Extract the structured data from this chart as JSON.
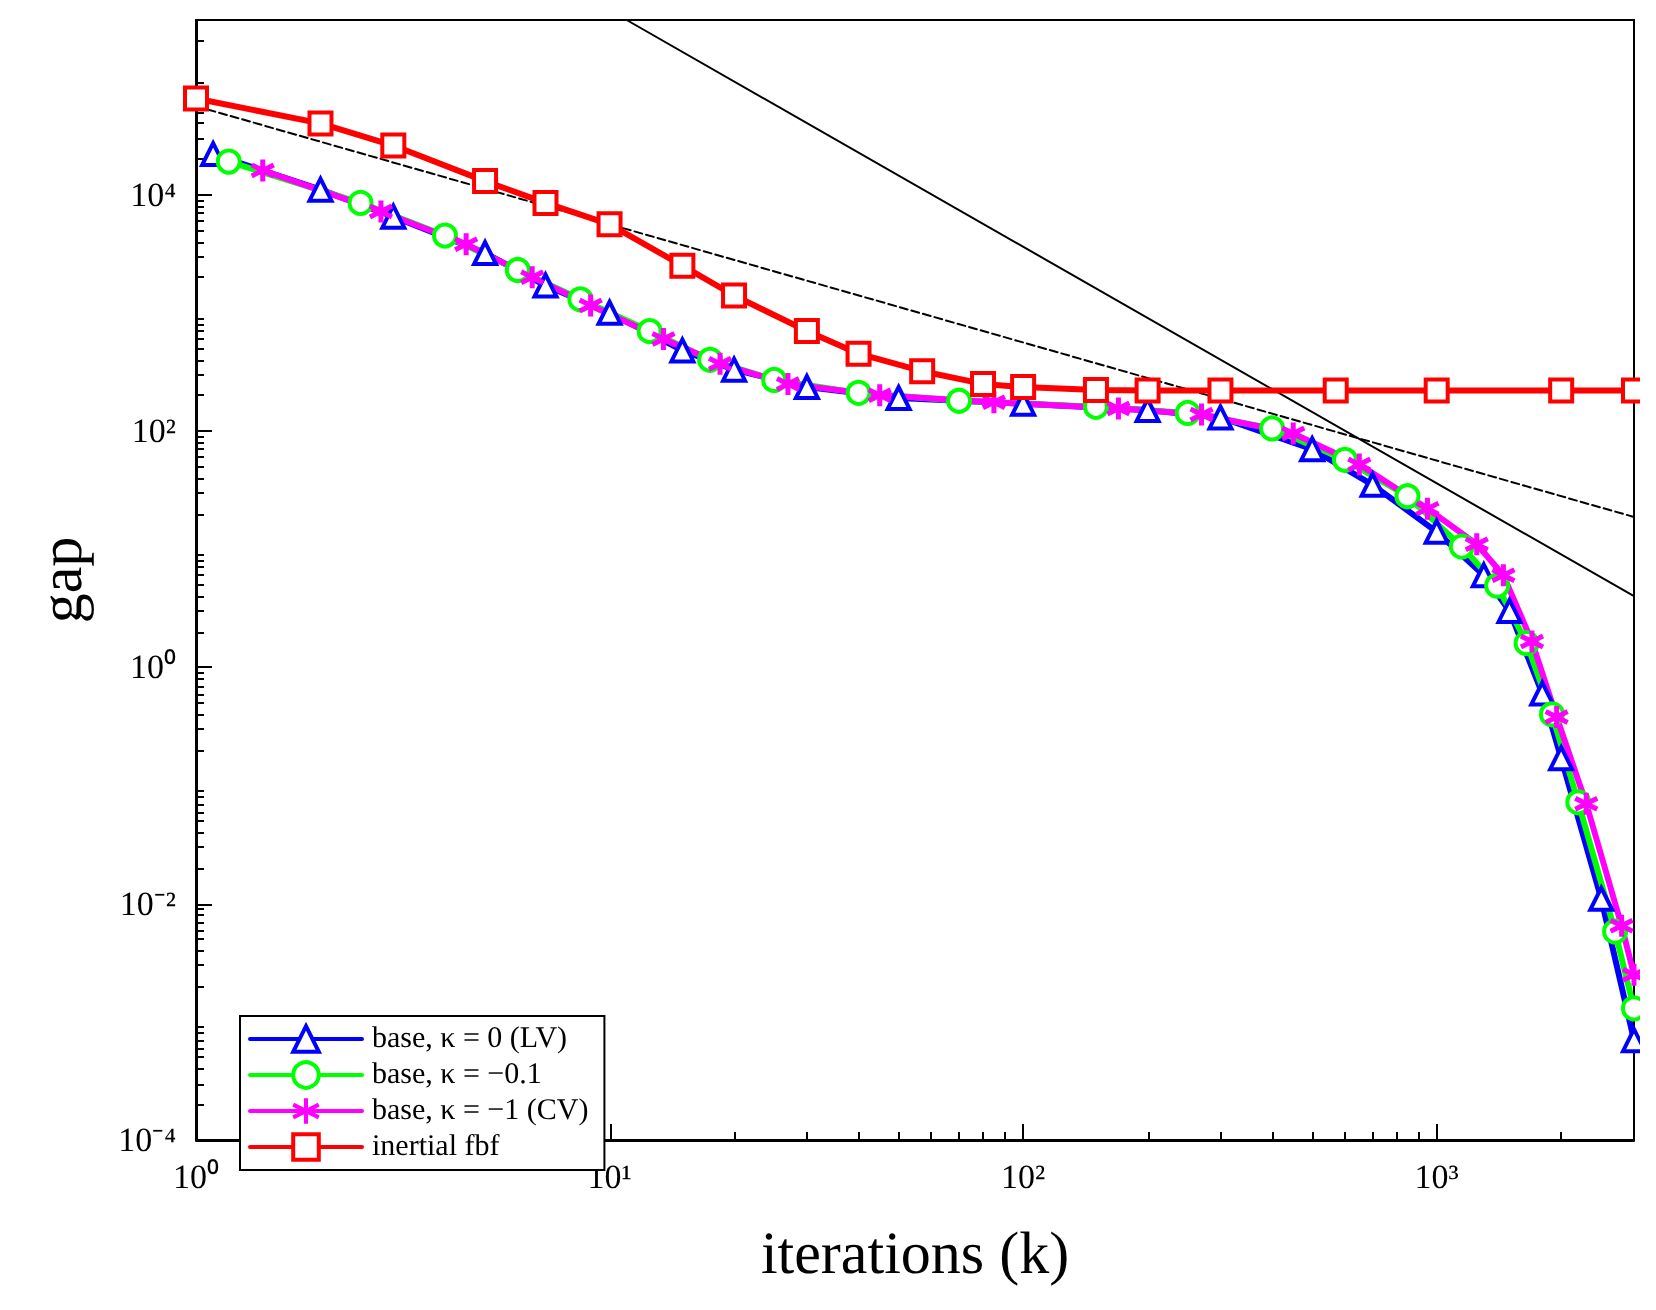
{
  "chart_data": {
    "type": "line",
    "xlabel": "iterations (k)",
    "ylabel": "gap",
    "log": "xy",
    "grid": false,
    "legend": "bottom left",
    "xlim": [
      1,
      3000
    ],
    "ylim": [
      0.0001,
      300000
    ],
    "xticks": [
      {
        "value": 1,
        "label": "10⁰"
      },
      {
        "value": 10,
        "label": "10¹"
      },
      {
        "value": 100,
        "label": "10²"
      },
      {
        "value": 1000,
        "label": "10³"
      }
    ],
    "yticks": [
      {
        "value": 0.0001,
        "label": "10⁻⁴"
      },
      {
        "value": 0.01,
        "label": "10⁻²"
      },
      {
        "value": 1,
        "label": "10⁰"
      },
      {
        "value": 100,
        "label": "10²"
      },
      {
        "value": 10000,
        "label": "10⁴"
      }
    ],
    "series": [
      {
        "name": "base, κ = 0 (LV)",
        "color": "#0000ff",
        "marker": "triangle",
        "x": [
          1.1,
          2,
          3,
          5,
          7,
          10,
          15,
          20,
          30,
          50,
          100,
          200,
          300,
          500,
          700,
          1000,
          1300,
          1500,
          1800,
          2000,
          2500,
          3000
        ],
        "values": [
          22000,
          11000,
          6500,
          3200,
          1700,
          1000,
          480,
          330,
          235,
          190,
          170,
          150,
          130,
          70,
          35,
          14,
          6,
          3,
          0.6,
          0.17,
          0.011,
          0.0007
        ]
      },
      {
        "name": "base, κ = −0.1",
        "color": "#00ff00",
        "marker": "circle",
        "x": [
          1.2,
          2.5,
          4,
          6,
          8.5,
          12.5,
          17.5,
          25,
          40,
          70,
          150,
          250,
          400,
          600,
          850,
          1150,
          1400,
          1650,
          1900,
          2200,
          2700,
          3000
        ],
        "values": [
          19000,
          8500,
          4500,
          2300,
          1300,
          700,
          400,
          270,
          210,
          180,
          160,
          142,
          105,
          57,
          28,
          10.5,
          4.9,
          1.6,
          0.4,
          0.072,
          0.0058,
          0.0013
        ]
      },
      {
        "name": "base, κ = −1 (CV)",
        "color": "#ff00ff",
        "marker": "cross",
        "x": [
          1.45,
          2.8,
          4.5,
          6.5,
          9,
          13.5,
          18.5,
          27,
          45,
          85,
          170,
          270,
          450,
          650,
          950,
          1250,
          1450,
          1700,
          1950,
          2300,
          2800,
          3000
        ],
        "values": [
          16000,
          7200,
          3800,
          2000,
          1150,
          600,
          370,
          250,
          200,
          175,
          155,
          138,
          95,
          52,
          22,
          11,
          6,
          1.65,
          0.38,
          0.07,
          0.0065,
          0.0025
        ]
      },
      {
        "name": "inertial fbf",
        "color": "#ff0000",
        "marker": "square",
        "x": [
          1,
          2,
          3,
          5,
          7,
          10,
          15,
          20,
          30,
          40,
          57,
          80,
          100,
          150,
          200,
          300,
          570,
          1000,
          2000,
          3000
        ],
        "values": [
          65000,
          40000,
          26000,
          13000,
          8500,
          5600,
          2500,
          1400,
          700,
          450,
          320,
          250,
          235,
          222,
          220,
          220,
          220,
          220,
          220,
          220
        ]
      },
      {
        "color": "#000000",
        "marker": "none",
        "line_style": "solid",
        "x": [
          11,
          3000
        ],
        "values": [
          300000,
          4
        ]
      },
      {
        "color": "#000000",
        "marker": "none",
        "line_style": "dashed",
        "x": [
          1,
          3000
        ],
        "values": [
          56000,
          18.7
        ]
      }
    ]
  }
}
